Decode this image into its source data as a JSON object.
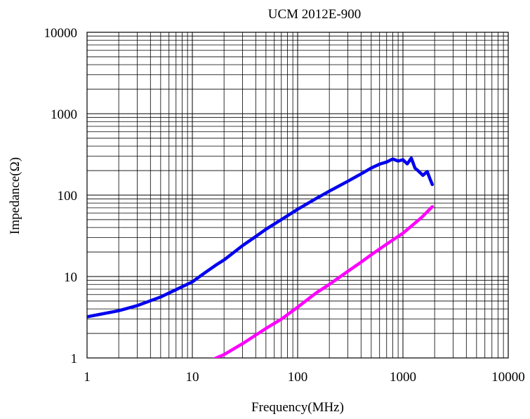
{
  "chart_data": {
    "type": "line",
    "title": "UCM 2012E-900",
    "xlabel": "Frequency(MHz)",
    "ylabel": "Impedance(Ω)",
    "x_scale": "log",
    "y_scale": "log",
    "xlim": [
      1,
      10000
    ],
    "ylim": [
      1,
      10000
    ],
    "grid": true,
    "legend": "none",
    "x_ticks": [
      "1",
      "10",
      "100",
      "1000",
      "10000"
    ],
    "y_ticks": [
      "1",
      "10",
      "100",
      "1000",
      "10000"
    ],
    "series": [
      {
        "color": "#0000ee",
        "points": [
          [
            1,
            3.2
          ],
          [
            2,
            3.8
          ],
          [
            3,
            4.4
          ],
          [
            5,
            5.6
          ],
          [
            7,
            6.9
          ],
          [
            10,
            8.6
          ],
          [
            13,
            11
          ],
          [
            17,
            14
          ],
          [
            20,
            16
          ],
          [
            25,
            20
          ],
          [
            30,
            24
          ],
          [
            40,
            31
          ],
          [
            50,
            38
          ],
          [
            70,
            50
          ],
          [
            100,
            67
          ],
          [
            150,
            91
          ],
          [
            200,
            112
          ],
          [
            300,
            148
          ],
          [
            400,
            182
          ],
          [
            500,
            215
          ],
          [
            600,
            240
          ],
          [
            700,
            255
          ],
          [
            800,
            278
          ],
          [
            900,
            262
          ],
          [
            1000,
            272
          ],
          [
            1100,
            242
          ],
          [
            1200,
            285
          ],
          [
            1300,
            215
          ],
          [
            1400,
            198
          ],
          [
            1550,
            175
          ],
          [
            1700,
            195
          ],
          [
            1800,
            160
          ],
          [
            1900,
            135
          ]
        ]
      },
      {
        "color": "#ff00ff",
        "points": [
          [
            16,
            0.97
          ],
          [
            20,
            1.1
          ],
          [
            30,
            1.5
          ],
          [
            50,
            2.3
          ],
          [
            70,
            3.0
          ],
          [
            100,
            4.2
          ],
          [
            150,
            6.3
          ],
          [
            200,
            8.0
          ],
          [
            300,
            11.6
          ],
          [
            400,
            15.0
          ],
          [
            500,
            18.5
          ],
          [
            700,
            25.0
          ],
          [
            1000,
            34.0
          ],
          [
            1500,
            53.0
          ],
          [
            1900,
            72.0
          ]
        ]
      }
    ]
  }
}
